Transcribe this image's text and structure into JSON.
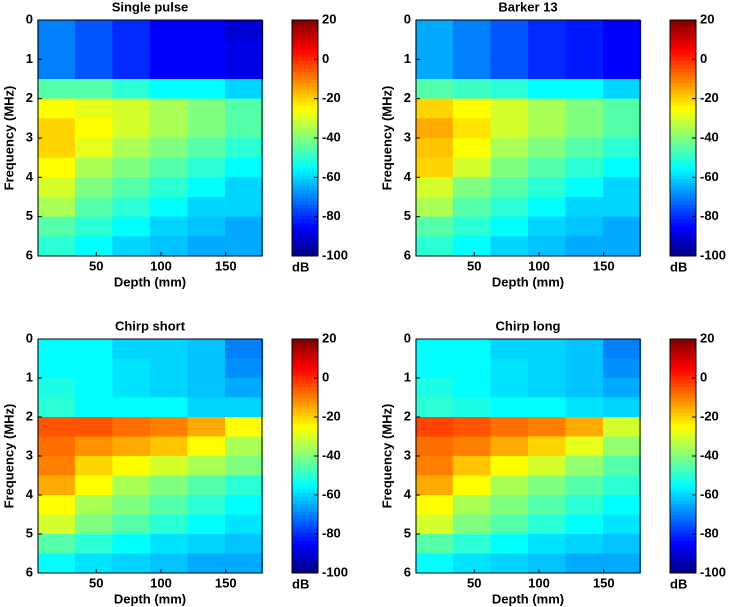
{
  "chart_data": [
    {
      "type": "heatmap",
      "title": "Single pulse",
      "xlabel": "Depth (mm)",
      "ylabel": "Frequency (MHz)",
      "x": [
        19,
        48,
        77,
        106,
        135,
        164
      ],
      "y": [
        0.25,
        0.75,
        1.25,
        1.75,
        2.25,
        2.75,
        3.25,
        3.75,
        4.25,
        4.75,
        5.25,
        5.75
      ],
      "xlim": [
        5,
        178
      ],
      "ylim": [
        0,
        6
      ],
      "xticks": [
        50,
        100,
        150
      ],
      "yticks": [
        0,
        1,
        2,
        3,
        4,
        5,
        6
      ],
      "y_inverted": true,
      "colormap": "jet",
      "clim": [
        -100,
        20
      ],
      "cticks": [
        -100,
        -80,
        -60,
        -40,
        -20,
        0,
        20
      ],
      "clabel": "dB",
      "values": [
        [
          -70,
          -75,
          -80,
          -85,
          -85,
          -90
        ],
        [
          -70,
          -75,
          -80,
          -85,
          -85,
          -88
        ],
        [
          -70,
          -75,
          -80,
          -85,
          -85,
          -88
        ],
        [
          -45,
          -45,
          -50,
          -55,
          -55,
          -60
        ],
        [
          -25,
          -28,
          -30,
          -35,
          -40,
          -45
        ],
        [
          -20,
          -25,
          -30,
          -35,
          -40,
          -45
        ],
        [
          -20,
          -28,
          -35,
          -40,
          -45,
          -50
        ],
        [
          -25,
          -35,
          -40,
          -45,
          -50,
          -55
        ],
        [
          -30,
          -40,
          -45,
          -50,
          -55,
          -60
        ],
        [
          -35,
          -45,
          -50,
          -55,
          -60,
          -60
        ],
        [
          -45,
          -50,
          -55,
          -60,
          -62,
          -65
        ],
        [
          -50,
          -55,
          -60,
          -62,
          -65,
          -65
        ]
      ]
    },
    {
      "type": "heatmap",
      "title": "Barker 13",
      "xlabel": "Depth (mm)",
      "ylabel": "Frequency (MHz)",
      "x": [
        19,
        48,
        77,
        106,
        135,
        164
      ],
      "y": [
        0.25,
        0.75,
        1.25,
        1.75,
        2.25,
        2.75,
        3.25,
        3.75,
        4.25,
        4.75,
        5.25,
        5.75
      ],
      "xlim": [
        5,
        178
      ],
      "ylim": [
        0,
        6
      ],
      "xticks": [
        50,
        100,
        150
      ],
      "yticks": [
        0,
        1,
        2,
        3,
        4,
        5,
        6
      ],
      "y_inverted": true,
      "colormap": "jet",
      "clim": [
        -100,
        20
      ],
      "cticks": [
        -100,
        -80,
        -60,
        -40,
        -20,
        0,
        20
      ],
      "clabel": "dB",
      "values": [
        [
          -65,
          -70,
          -75,
          -80,
          -82,
          -85
        ],
        [
          -65,
          -70,
          -75,
          -80,
          -82,
          -85
        ],
        [
          -65,
          -70,
          -75,
          -80,
          -82,
          -85
        ],
        [
          -45,
          -48,
          -50,
          -55,
          -55,
          -60
        ],
        [
          -20,
          -25,
          -30,
          -35,
          -40,
          -45
        ],
        [
          -15,
          -22,
          -30,
          -35,
          -40,
          -45
        ],
        [
          -18,
          -25,
          -35,
          -40,
          -45,
          -50
        ],
        [
          -20,
          -30,
          -40,
          -45,
          -50,
          -55
        ],
        [
          -30,
          -40,
          -45,
          -50,
          -55,
          -60
        ],
        [
          -35,
          -45,
          -50,
          -55,
          -60,
          -60
        ],
        [
          -45,
          -50,
          -55,
          -60,
          -62,
          -65
        ],
        [
          -50,
          -55,
          -60,
          -62,
          -65,
          -65
        ]
      ]
    },
    {
      "type": "heatmap",
      "title": "Chirp short",
      "xlabel": "Depth (mm)",
      "ylabel": "Frequency (MHz)",
      "x": [
        19,
        48,
        77,
        106,
        135,
        164
      ],
      "y": [
        0.25,
        0.75,
        1.25,
        1.75,
        2.25,
        2.75,
        3.25,
        3.75,
        4.25,
        4.75,
        5.25,
        5.75
      ],
      "xlim": [
        5,
        178
      ],
      "ylim": [
        0,
        6
      ],
      "xticks": [
        50,
        100,
        150
      ],
      "yticks": [
        0,
        1,
        2,
        3,
        4,
        5,
        6
      ],
      "y_inverted": true,
      "colormap": "jet",
      "clim": [
        -100,
        20
      ],
      "cticks": [
        -100,
        -80,
        -60,
        -40,
        -20,
        0,
        20
      ],
      "clabel": "dB",
      "values": [
        [
          -55,
          -55,
          -60,
          -60,
          -62,
          -70
        ],
        [
          -55,
          -55,
          -58,
          -60,
          -62,
          -68
        ],
        [
          -52,
          -55,
          -58,
          -60,
          -62,
          -65
        ],
        [
          -50,
          -55,
          -55,
          -55,
          -60,
          -60
        ],
        [
          -5,
          -5,
          -8,
          -10,
          -15,
          -25
        ],
        [
          -8,
          -12,
          -15,
          -18,
          -25,
          -35
        ],
        [
          -10,
          -20,
          -25,
          -30,
          -35,
          -40
        ],
        [
          -15,
          -25,
          -35,
          -40,
          -45,
          -50
        ],
        [
          -25,
          -35,
          -40,
          -45,
          -50,
          -55
        ],
        [
          -30,
          -40,
          -45,
          -50,
          -55,
          -58
        ],
        [
          -45,
          -50,
          -55,
          -58,
          -60,
          -62
        ],
        [
          -55,
          -58,
          -60,
          -62,
          -65,
          -65
        ]
      ]
    },
    {
      "type": "heatmap",
      "title": "Chirp long",
      "xlabel": "Depth (mm)",
      "ylabel": "Frequency (MHz)",
      "x": [
        19,
        48,
        77,
        106,
        135,
        164
      ],
      "y": [
        0.25,
        0.75,
        1.25,
        1.75,
        2.25,
        2.75,
        3.25,
        3.75,
        4.25,
        4.75,
        5.25,
        5.75
      ],
      "xlim": [
        5,
        178
      ],
      "ylim": [
        0,
        6
      ],
      "xticks": [
        50,
        100,
        150
      ],
      "yticks": [
        0,
        1,
        2,
        3,
        4,
        5,
        6
      ],
      "y_inverted": true,
      "colormap": "jet",
      "clim": [
        -100,
        20
      ],
      "cticks": [
        -100,
        -80,
        -60,
        -40,
        -20,
        0,
        20
      ],
      "clabel": "dB",
      "values": [
        [
          -55,
          -55,
          -60,
          -60,
          -62,
          -70
        ],
        [
          -55,
          -55,
          -58,
          -60,
          -62,
          -68
        ],
        [
          -52,
          -55,
          -58,
          -60,
          -62,
          -65
        ],
        [
          -50,
          -52,
          -55,
          -55,
          -58,
          -60
        ],
        [
          -3,
          -5,
          -8,
          -10,
          -15,
          -30
        ],
        [
          -8,
          -10,
          -15,
          -20,
          -28,
          -38
        ],
        [
          -10,
          -18,
          -25,
          -30,
          -38,
          -45
        ],
        [
          -15,
          -25,
          -35,
          -40,
          -45,
          -50
        ],
        [
          -25,
          -35,
          -40,
          -45,
          -50,
          -55
        ],
        [
          -30,
          -40,
          -45,
          -50,
          -55,
          -58
        ],
        [
          -45,
          -50,
          -55,
          -58,
          -60,
          -62
        ],
        [
          -55,
          -58,
          -60,
          -62,
          -65,
          -65
        ]
      ]
    }
  ]
}
